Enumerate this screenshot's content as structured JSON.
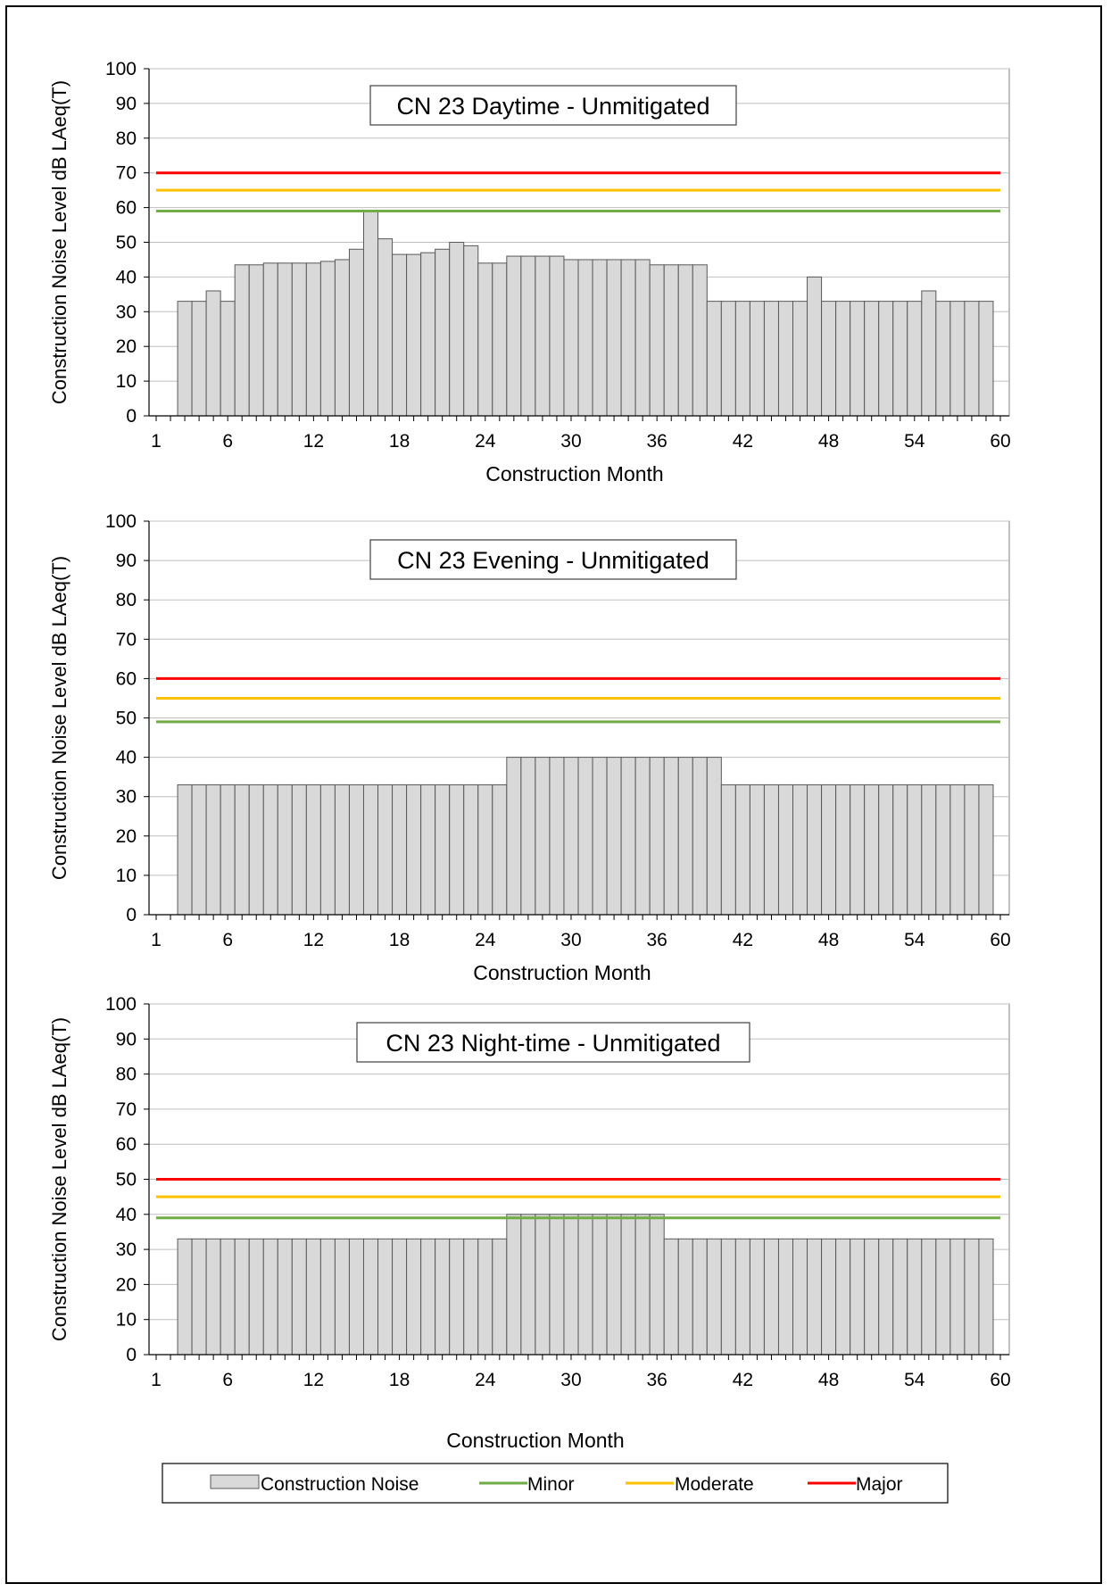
{
  "chart_data": [
    {
      "type": "bar",
      "title": "CN 23 Daytime - Unmitigated",
      "xlabel": "Construction Month",
      "ylabel": "Construction Noise Level dB LAeq(T)",
      "ylim": [
        0,
        100
      ],
      "yticks": [
        0,
        10,
        20,
        30,
        40,
        50,
        60,
        70,
        80,
        90,
        100
      ],
      "xlim": [
        1,
        60
      ],
      "xtick_labels": [
        "1",
        "6",
        "12",
        "18",
        "24",
        "30",
        "36",
        "42",
        "48",
        "54",
        "60"
      ],
      "grid": true,
      "series": [
        {
          "name": "Construction Noise",
          "type": "bar",
          "color": "#d9d9d9",
          "x": [
            3,
            4,
            5,
            6,
            7,
            8,
            9,
            10,
            11,
            12,
            13,
            14,
            15,
            16,
            17,
            18,
            19,
            20,
            21,
            22,
            23,
            24,
            25,
            26,
            27,
            28,
            29,
            30,
            31,
            32,
            33,
            34,
            35,
            36,
            37,
            38,
            39,
            40,
            41,
            42,
            43,
            44,
            45,
            46,
            47,
            48,
            49,
            50,
            51,
            52,
            53,
            54,
            55,
            56,
            57,
            58,
            59
          ],
          "values": [
            33,
            33,
            36,
            33,
            43.5,
            43.5,
            44,
            44,
            44,
            44,
            44.5,
            45,
            48,
            59,
            51,
            46.5,
            46.5,
            47,
            48,
            50,
            49,
            44,
            44,
            46,
            46,
            46,
            46,
            45,
            45,
            45,
            45,
            45,
            45,
            43.5,
            43.5,
            43.5,
            43.5,
            33,
            33,
            33,
            33,
            33,
            33,
            33,
            40,
            33,
            33,
            33,
            33,
            33,
            33,
            33,
            36,
            33,
            33,
            33,
            33
          ]
        },
        {
          "name": "Minor",
          "type": "line",
          "color": "#70ad47",
          "value": 59
        },
        {
          "name": "Moderate",
          "type": "line",
          "color": "#ffc000",
          "value": 65
        },
        {
          "name": "Major",
          "type": "line",
          "color": "#ff0000",
          "value": 70
        }
      ]
    },
    {
      "type": "bar",
      "title": "CN 23 Evening - Unmitigated",
      "xlabel": "Construction Month",
      "ylabel": "Construction Noise Level dB LAeq(T)",
      "ylim": [
        0,
        100
      ],
      "yticks": [
        0,
        10,
        20,
        30,
        40,
        50,
        60,
        70,
        80,
        90,
        100
      ],
      "xlim": [
        1,
        60
      ],
      "xtick_labels": [
        "1",
        "6",
        "12",
        "18",
        "24",
        "30",
        "36",
        "42",
        "48",
        "54",
        "60"
      ],
      "grid": true,
      "series": [
        {
          "name": "Construction Noise",
          "type": "bar",
          "color": "#d9d9d9",
          "x": [
            3,
            4,
            5,
            6,
            7,
            8,
            9,
            10,
            11,
            12,
            13,
            14,
            15,
            16,
            17,
            18,
            19,
            20,
            21,
            22,
            23,
            24,
            25,
            26,
            27,
            28,
            29,
            30,
            31,
            32,
            33,
            34,
            35,
            36,
            37,
            38,
            39,
            40,
            41,
            42,
            43,
            44,
            45,
            46,
            47,
            48,
            49,
            50,
            51,
            52,
            53,
            54,
            55,
            56,
            57,
            58,
            59
          ],
          "values": [
            33,
            33,
            33,
            33,
            33,
            33,
            33,
            33,
            33,
            33,
            33,
            33,
            33,
            33,
            33,
            33,
            33,
            33,
            33,
            33,
            33,
            33,
            33,
            40,
            40,
            40,
            40,
            40,
            40,
            40,
            40,
            40,
            40,
            40,
            40,
            40,
            40,
            40,
            33,
            33,
            33,
            33,
            33,
            33,
            33,
            33,
            33,
            33,
            33,
            33,
            33,
            33,
            33,
            33,
            33,
            33,
            33
          ]
        },
        {
          "name": "Minor",
          "type": "line",
          "color": "#70ad47",
          "value": 49
        },
        {
          "name": "Moderate",
          "type": "line",
          "color": "#ffc000",
          "value": 55
        },
        {
          "name": "Major",
          "type": "line",
          "color": "#ff0000",
          "value": 60
        }
      ]
    },
    {
      "type": "bar",
      "title": "CN 23 Night-time - Unmitigated",
      "xlabel": "Construction Month",
      "ylabel": "Construction Noise Level dB LAeq(T)",
      "ylim": [
        0,
        100
      ],
      "yticks": [
        0,
        10,
        20,
        30,
        40,
        50,
        60,
        70,
        80,
        90,
        100
      ],
      "xlim": [
        1,
        60
      ],
      "xtick_labels": [
        "1",
        "6",
        "12",
        "18",
        "24",
        "30",
        "36",
        "42",
        "48",
        "54",
        "60"
      ],
      "grid": true,
      "series": [
        {
          "name": "Construction Noise",
          "type": "bar",
          "color": "#d9d9d9",
          "x": [
            3,
            4,
            5,
            6,
            7,
            8,
            9,
            10,
            11,
            12,
            13,
            14,
            15,
            16,
            17,
            18,
            19,
            20,
            21,
            22,
            23,
            24,
            25,
            26,
            27,
            28,
            29,
            30,
            31,
            32,
            33,
            34,
            35,
            36,
            37,
            38,
            39,
            40,
            41,
            42,
            43,
            44,
            45,
            46,
            47,
            48,
            49,
            50,
            51,
            52,
            53,
            54,
            55,
            56,
            57,
            58,
            59
          ],
          "values": [
            33,
            33,
            33,
            33,
            33,
            33,
            33,
            33,
            33,
            33,
            33,
            33,
            33,
            33,
            33,
            33,
            33,
            33,
            33,
            33,
            33,
            33,
            33,
            40,
            40,
            40,
            40,
            40,
            40,
            40,
            40,
            40,
            40,
            40,
            33,
            33,
            33,
            33,
            33,
            33,
            33,
            33,
            33,
            33,
            33,
            33,
            33,
            33,
            33,
            33,
            33,
            33,
            33,
            33,
            33,
            33,
            33
          ]
        },
        {
          "name": "Minor",
          "type": "line",
          "color": "#70ad47",
          "value": 39
        },
        {
          "name": "Moderate",
          "type": "line",
          "color": "#ffc000",
          "value": 45
        },
        {
          "name": "Major",
          "type": "line",
          "color": "#ff0000",
          "value": 50
        }
      ]
    }
  ],
  "legend": {
    "placement": "bottom",
    "items": [
      {
        "label": "Construction Noise",
        "kind": "bar",
        "color": "#d9d9d9"
      },
      {
        "label": "Minor",
        "kind": "line",
        "color": "#70ad47"
      },
      {
        "label": "Moderate",
        "kind": "line",
        "color": "#ffc000"
      },
      {
        "label": "Major",
        "kind": "line",
        "color": "#ff0000"
      }
    ]
  }
}
